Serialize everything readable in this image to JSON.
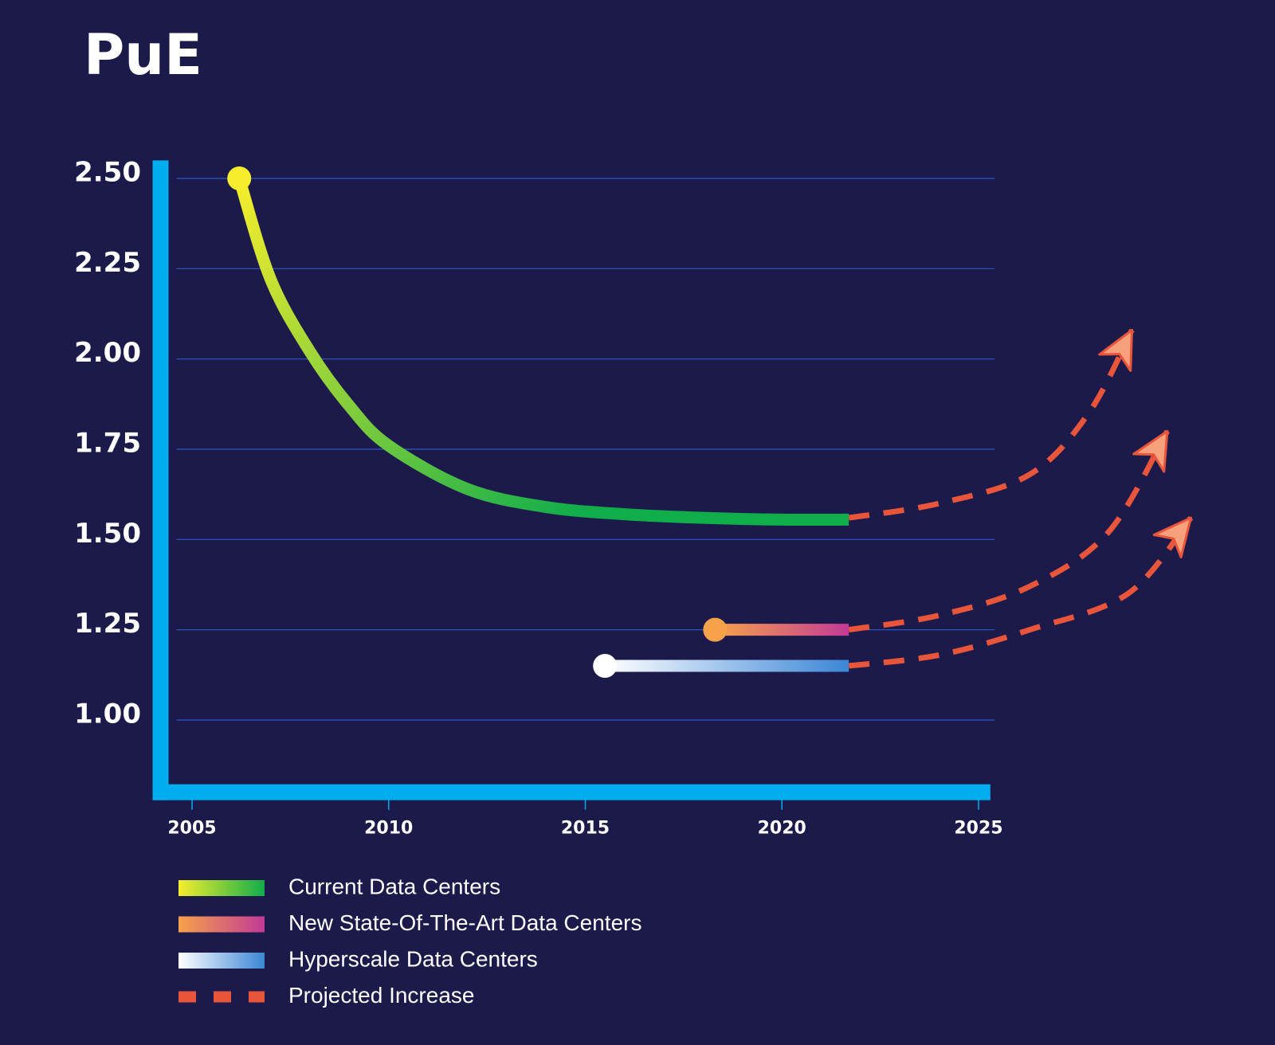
{
  "chart_data": {
    "type": "line",
    "title": "PuE",
    "xlim": [
      2004.2,
      2025.3
    ],
    "ylim": [
      0.8,
      2.55
    ],
    "xticks": [
      2005,
      2010,
      2015,
      2020,
      2025
    ],
    "yticks": [
      {
        "value": 1.0,
        "label": "1.00"
      },
      1.25,
      {
        "value": 1.5,
        "label": "1.50"
      },
      1.75,
      {
        "value": 2.0,
        "label": "2.00"
      },
      2.25,
      {
        "value": 2.5,
        "label": "2.50"
      }
    ],
    "grid": true,
    "series": [
      {
        "name": "Current Data Centers",
        "colors": [
          "#f6ee2c",
          "#10ad4b"
        ],
        "x": [
          2006.2,
          2007,
          2008,
          2009,
          2010,
          2012,
          2014,
          2016,
          2018,
          2020,
          2021.7
        ],
        "values": [
          2.5,
          2.22,
          2.02,
          1.87,
          1.76,
          1.64,
          1.59,
          1.57,
          1.56,
          1.555,
          1.555
        ]
      },
      {
        "name": "New State-Of-The-Art Data Centers",
        "colors": [
          "#f6a24a",
          "#c23a96"
        ],
        "x": [
          2018.3,
          2021.7
        ],
        "values": [
          1.25,
          1.25
        ]
      },
      {
        "name": "Hyperscale Data Centers",
        "colors": [
          "#ffffff",
          "#3b86d6"
        ],
        "x": [
          2015.5,
          2021.7
        ],
        "values": [
          1.15,
          1.15
        ]
      }
    ],
    "projection": {
      "name": "Projected Increase",
      "color": "#e8553a",
      "arrow_fill": "#f7a07c",
      "lines": [
        {
          "x": [
            2021.7,
            2024,
            2026.3,
            2027.8,
            2028.9
          ],
          "values": [
            1.56,
            1.6,
            1.68,
            1.85,
            2.08
          ]
        },
        {
          "x": [
            2021.7,
            2024,
            2026.3,
            2028.3,
            2029.8
          ],
          "values": [
            1.25,
            1.29,
            1.37,
            1.52,
            1.8
          ]
        },
        {
          "x": [
            2021.7,
            2024,
            2026.3,
            2028.8,
            2030.4
          ],
          "values": [
            1.15,
            1.18,
            1.25,
            1.35,
            1.56
          ]
        }
      ]
    }
  }
}
